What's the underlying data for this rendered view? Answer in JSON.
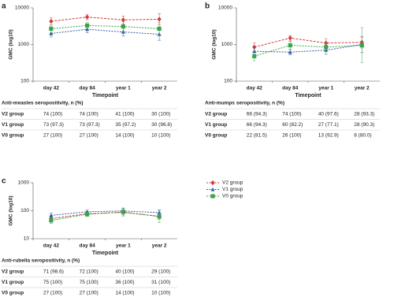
{
  "chart_data": [
    {
      "type": "line",
      "panel_label": "a",
      "ylabel": "GMC (log10)",
      "xlabel": "Timepoint",
      "categories": [
        "day 42",
        "day 84",
        "year 1",
        "year 2"
      ],
      "log_scale": true,
      "ylim": [
        100,
        10000
      ],
      "yticks": [
        100,
        1000,
        10000
      ],
      "series": [
        {
          "name": "V2 group",
          "color": "#d8393b",
          "marker": "diamond",
          "values": [
            4300,
            5600,
            4700,
            4900
          ],
          "ci": [
            [
              3400,
              5400
            ],
            [
              4700,
              6600
            ],
            [
              3600,
              6000
            ],
            [
              3500,
              7000
            ]
          ]
        },
        {
          "name": "V1 group",
          "color": "#2f5fa7",
          "marker": "triangle",
          "values": [
            2000,
            2600,
            2200,
            1900
          ],
          "ci": [
            [
              1600,
              2500
            ],
            [
              2100,
              3200
            ],
            [
              1700,
              2900
            ],
            [
              1300,
              2700
            ]
          ]
        },
        {
          "name": "V0 group",
          "color": "#3aa34a",
          "marker": "square",
          "values": [
            2700,
            3300,
            3100,
            2700
          ],
          "ci": [
            [
              2100,
              3400
            ],
            [
              2700,
              4000
            ],
            [
              2300,
              4100
            ],
            [
              1800,
              4000
            ]
          ]
        }
      ],
      "table": {
        "title": "Anti-measles seropositivity, n (%)",
        "rows": [
          [
            "V2 group",
            "74 (100)",
            "74 (100)",
            "41 (100)",
            "30 (100)"
          ],
          [
            "V1 group",
            "73 (97.3)",
            "73 (97.3)",
            "35 (97.2)",
            "30 (96.8)"
          ],
          [
            "V0 group",
            "27 (100)",
            "27 (100)",
            "14 (100)",
            "10 (100)"
          ]
        ]
      }
    },
    {
      "type": "line",
      "panel_label": "b",
      "ylabel": "GMC (log10)",
      "xlabel": "Timepoint",
      "categories": [
        "day 42",
        "day 84",
        "year 1",
        "year 2"
      ],
      "log_scale": true,
      "ylim": [
        100,
        10000
      ],
      "yticks": [
        100,
        1000,
        10000
      ],
      "series": [
        {
          "name": "V2 group",
          "color": "#d8393b",
          "marker": "diamond",
          "values": [
            850,
            1500,
            1100,
            1150
          ],
          "ci": [
            [
              650,
              1100
            ],
            [
              1250,
              1750
            ],
            [
              850,
              1450
            ],
            [
              800,
              1650
            ]
          ]
        },
        {
          "name": "V1 group",
          "color": "#2f5fa7",
          "marker": "triangle",
          "values": [
            650,
            620,
            700,
            1000
          ],
          "ci": [
            [
              500,
              850
            ],
            [
              520,
              750
            ],
            [
              540,
              900
            ],
            [
              600,
              1600
            ]
          ]
        },
        {
          "name": "V0 group",
          "color": "#3aa34a",
          "marker": "square",
          "values": [
            480,
            950,
            850,
            950
          ],
          "ci": [
            [
              360,
              640
            ],
            [
              750,
              1200
            ],
            [
              650,
              1100
            ],
            [
              320,
              2900
            ]
          ]
        }
      ],
      "table": {
        "title": "Anti-mumps seropositivity, n (%)",
        "rows": [
          [
            "V2 group",
            "66 (94.3)",
            "74 (100)",
            "40 (97.6)",
            "28 (93.3)"
          ],
          [
            "V1 group",
            "66 (94.3)",
            "60 (82.2)",
            "27 (77.1)",
            "28 (90.3)"
          ],
          [
            "V0 group",
            "22 (81.5)",
            "26 (100)",
            "13 (92.9)",
            "8 (80.0)"
          ]
        ]
      }
    },
    {
      "type": "line",
      "panel_label": "c",
      "ylabel": "GMC (log10)",
      "xlabel": "Timepoint",
      "categories": [
        "day 42",
        "day 84",
        "year 1",
        "year 2"
      ],
      "log_scale": true,
      "ylim": [
        10,
        1000
      ],
      "yticks": [
        10,
        100,
        1000
      ],
      "series": [
        {
          "name": "V2 group",
          "color": "#d8393b",
          "marker": "diamond",
          "values": [
            52,
            78,
            88,
            63
          ],
          "ci": [
            [
              42,
              64
            ],
            [
              65,
              92
            ],
            [
              70,
              110
            ],
            [
              50,
              80
            ]
          ]
        },
        {
          "name": "V1 group",
          "color": "#2f5fa7",
          "marker": "triangle",
          "values": [
            68,
            92,
            98,
            86
          ],
          "ci": [
            [
              56,
              82
            ],
            [
              80,
              105
            ],
            [
              80,
              120
            ],
            [
              68,
              108
            ]
          ]
        },
        {
          "name": "V0 group",
          "color": "#3aa34a",
          "marker": "square",
          "values": [
            45,
            75,
            90,
            62
          ],
          "ci": [
            [
              35,
              58
            ],
            [
              62,
              90
            ],
            [
              65,
              125
            ],
            [
              38,
              100
            ]
          ]
        }
      ],
      "table": {
        "title": "Anti-rubella seropositivity, n (%)",
        "rows": [
          [
            "V2 group",
            "71 (98.6)",
            "72 (100)",
            "40 (100)",
            "29 (100)"
          ],
          [
            "V1 group",
            "75 (100)",
            "75 (100)",
            "36 (100)",
            "31 (100)"
          ],
          [
            "V0 group",
            "27 (100)",
            "27 (100)",
            "14 (100)",
            "10 (100)"
          ]
        ]
      }
    }
  ]
}
